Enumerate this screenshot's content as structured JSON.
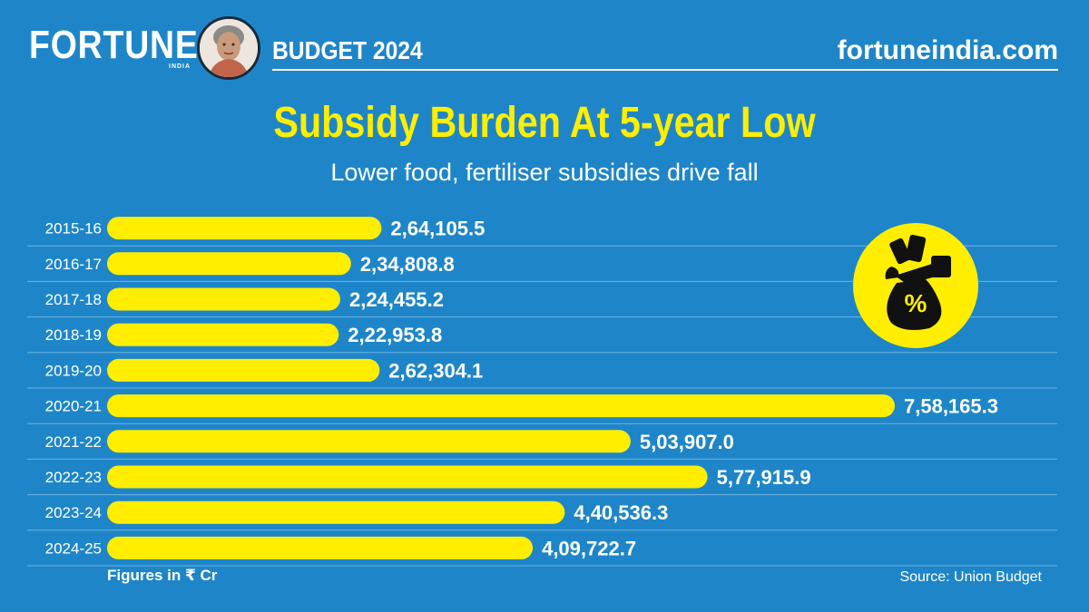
{
  "header": {
    "brand": "FORTUNE",
    "brand_sub": "INDIA",
    "budget_label": "BUDGET 2024",
    "site": "fortuneindia.com"
  },
  "chart_data": {
    "type": "bar",
    "orientation": "horizontal",
    "title": "Subsidy Burden At 5-year Low",
    "subtitle": "Lower food, fertiliser subsidies drive fall",
    "categories": [
      "2015-16",
      "2016-17",
      "2017-18",
      "2018-19",
      "2019-20",
      "2020-21",
      "2021-22",
      "2022-23",
      "2023-24",
      "2024-25"
    ],
    "values": [
      264105.5,
      234808.8,
      224455.2,
      222953.8,
      262304.1,
      758165.3,
      503907.0,
      577915.9,
      440536.3,
      409722.7
    ],
    "value_labels": [
      "2,64,105.5",
      "2,34,808.8",
      "2,24,455.2",
      "2,22,953.8",
      "2,62,304.1",
      "7,58,165.3",
      "5,03,907.0",
      "5,77,915.9",
      "4,40,536.3",
      "4,09,722.7"
    ],
    "xlim": [
      0,
      758165.3
    ],
    "bar_color": "#ffee00",
    "unit_note": "Figures in ₹ Cr",
    "source": "Source: Union Budget"
  },
  "badge": {
    "symbol": "%",
    "icon": "money-bag-icon"
  },
  "colors": {
    "background": "#1e86c8",
    "accent": "#ffee00",
    "text": "#ffffff"
  }
}
